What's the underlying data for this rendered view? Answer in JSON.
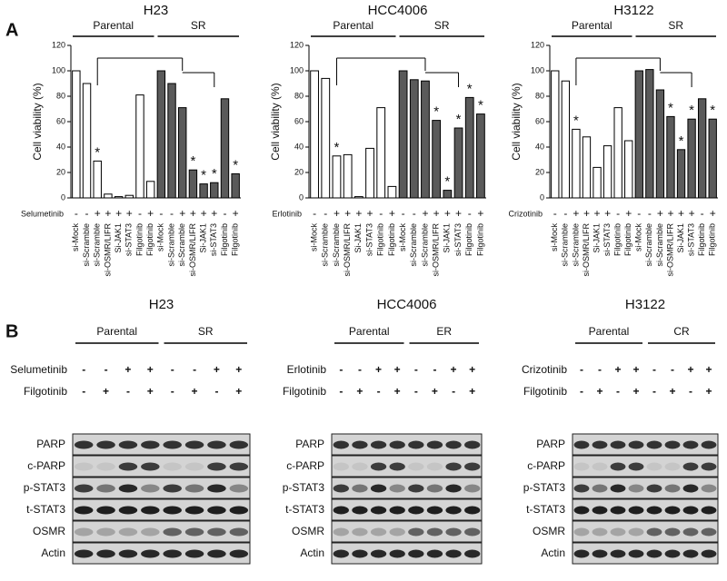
{
  "panel_a_label": "A",
  "chart_data": [
    {
      "type": "bar",
      "title": "H23",
      "groups": [
        "Parental",
        "SR"
      ],
      "group_colors": [
        "#ffffff",
        "#5a5a5a"
      ],
      "ylabel": "Cell viability (%)",
      "drug": "Selumetinib",
      "categories": [
        "si-Mock",
        "si-Scramble",
        "si-Scramble",
        "si-OSMR/LIFR",
        "Si-JAK1",
        "si-STAT3",
        "Filgotinib",
        "Filgotinib",
        "si-Mock",
        "si-Scramble",
        "si-Scramble",
        "si-OSMR/LIFR",
        "Si-JAK1",
        "si-STAT3",
        "Filgotinib",
        "Filgotinib"
      ],
      "drug_row": [
        "-",
        "-",
        "+",
        "+",
        "+",
        "+",
        "-",
        "+",
        "-",
        "-",
        "+",
        "+",
        "+",
        "+",
        "-",
        "+"
      ],
      "values": [
        100,
        90,
        29,
        3,
        1,
        2,
        81,
        13,
        100,
        90,
        71,
        22,
        11,
        12,
        78,
        19
      ],
      "significance": [
        null,
        null,
        "*",
        null,
        null,
        null,
        null,
        null,
        null,
        null,
        null,
        "*",
        "*",
        "*",
        null,
        "*"
      ],
      "ylim": [
        0,
        120
      ],
      "yticks": [
        0,
        20,
        40,
        60,
        80,
        100,
        120
      ]
    },
    {
      "type": "bar",
      "title": "HCC4006",
      "groups": [
        "Parental",
        "SR"
      ],
      "group_colors": [
        "#ffffff",
        "#5a5a5a"
      ],
      "ylabel": "Cell viability (%)",
      "drug": "Erlotinib",
      "categories": [
        "si-Mock",
        "si-Scramble",
        "si-Scramble",
        "si-OSMR/LIFR",
        "Si-JAK1",
        "si-STAT3",
        "Filgotinib",
        "Filgotinib",
        "si-Mock",
        "si-Scramble",
        "si-Scramble",
        "si-OSMR/LIFR",
        "Si-JAK1",
        "si-STAT3",
        "Filgotinib",
        "Filgotinib"
      ],
      "drug_row": [
        "-",
        "-",
        "+",
        "+",
        "+",
        "+",
        "-",
        "+",
        "-",
        "-",
        "+",
        "+",
        "+",
        "+",
        "-",
        "+"
      ],
      "values": [
        100,
        94,
        33,
        34,
        1,
        39,
        71,
        9,
        100,
        93,
        92,
        61,
        6,
        55,
        79,
        66
      ],
      "significance": [
        null,
        null,
        "*",
        null,
        null,
        null,
        null,
        null,
        null,
        null,
        null,
        "*",
        "*",
        "*",
        "*",
        "*"
      ],
      "ylim": [
        0,
        120
      ],
      "yticks": [
        0,
        20,
        40,
        60,
        80,
        100,
        120
      ]
    },
    {
      "type": "bar",
      "title": "H3122",
      "groups": [
        "Parental",
        "SR"
      ],
      "group_colors": [
        "#ffffff",
        "#5a5a5a"
      ],
      "ylabel": "Cell viability (%)",
      "drug": "Crizotinib",
      "categories": [
        "si-Mock",
        "si-Scramble",
        "si-Scramble",
        "si-OSMR/LIFR",
        "Si-JAK1",
        "si-STAT3",
        "Filgotinib",
        "Filgotinib",
        "si-Mock",
        "si-Scramble",
        "si-Scramble",
        "si-OSMR/LIFR",
        "Si-JAK1",
        "si-STAT3",
        "Filgotinib",
        "Filgotinib"
      ],
      "drug_row": [
        "-",
        "-",
        "+",
        "+",
        "+",
        "+",
        "-",
        "+",
        "-",
        "-",
        "+",
        "+",
        "+",
        "+",
        "-",
        "+"
      ],
      "values": [
        100,
        92,
        54,
        48,
        24,
        41,
        71,
        45,
        100,
        101,
        85,
        64,
        38,
        62,
        78,
        62
      ],
      "significance": [
        null,
        null,
        "*",
        null,
        null,
        null,
        null,
        null,
        null,
        null,
        null,
        "*",
        "*",
        "*",
        null,
        "*"
      ],
      "ylim": [
        0,
        120
      ],
      "yticks": [
        0,
        20,
        40,
        60,
        80,
        100,
        120
      ]
    }
  ],
  "panel_b": {
    "label": "B",
    "blots": [
      {
        "title": "H23",
        "groups": [
          "Parental",
          "SR"
        ],
        "treatments": [
          {
            "name": "Selumetinib",
            "signs": [
              "-",
              "-",
              "+",
              "+",
              "-",
              "-",
              "+",
              "+"
            ]
          },
          {
            "name": "Filgotinib",
            "signs": [
              "-",
              "+",
              "-",
              "+",
              "-",
              "+",
              "-",
              "+"
            ]
          }
        ],
        "rows": [
          "PARP",
          "c-PARP",
          "p-STAT3",
          "t-STAT3",
          "OSMR",
          "Actin"
        ]
      },
      {
        "title": "HCC4006",
        "groups": [
          "Parental",
          "ER"
        ],
        "treatments": [
          {
            "name": "Erlotinib",
            "signs": [
              "-",
              "-",
              "+",
              "+",
              "-",
              "-",
              "+",
              "+"
            ]
          },
          {
            "name": "Filgotinib",
            "signs": [
              "-",
              "+",
              "-",
              "+",
              "-",
              "+",
              "-",
              "+"
            ]
          }
        ],
        "rows": [
          "PARP",
          "c-PARP",
          "p-STAT3",
          "t-STAT3",
          "OSMR",
          "Actin"
        ]
      },
      {
        "title": "H3122",
        "groups": [
          "Parental",
          "CR"
        ],
        "treatments": [
          {
            "name": "Crizotinib",
            "signs": [
              "-",
              "-",
              "+",
              "+",
              "-",
              "-",
              "+",
              "+"
            ]
          },
          {
            "name": "Filgotinib",
            "signs": [
              "-",
              "+",
              "-",
              "+",
              "-",
              "+",
              "-",
              "+"
            ]
          }
        ],
        "rows": [
          "PARP",
          "c-PARP",
          "p-STAT3",
          "t-STAT3",
          "OSMR",
          "Actin"
        ]
      }
    ]
  }
}
